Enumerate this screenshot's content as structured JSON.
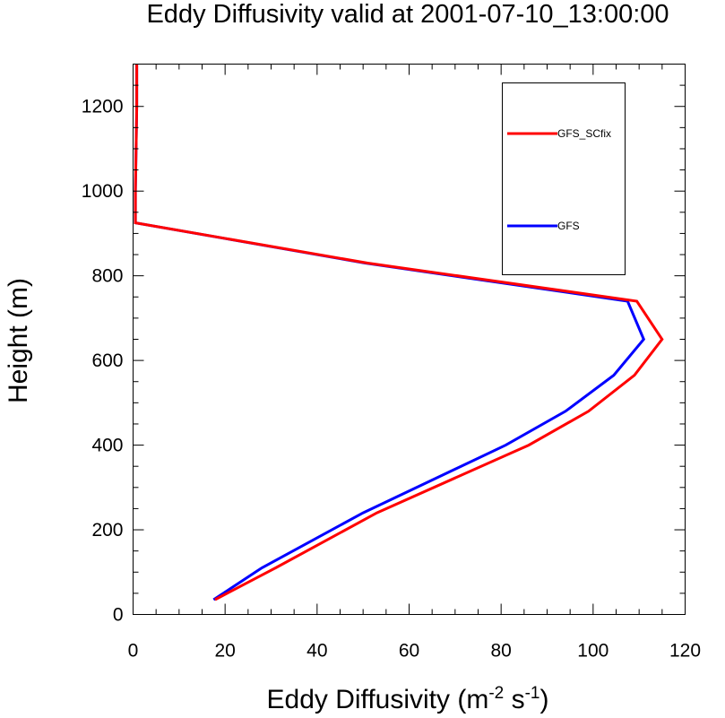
{
  "chart_data": {
    "type": "line",
    "title": "Eddy Diffusivity valid at 2001-07-10_13:00:00",
    "xlabel": "Eddy Diffusivity (m",
    "xlabel_exp1": "-2",
    "xlabel_mid": " s",
    "xlabel_exp2": "-1",
    "xlabel_end": ")",
    "ylabel": "Height (m)",
    "xlim": [
      0,
      120
    ],
    "ylim": [
      0,
      1300
    ],
    "xticks": [
      0,
      20,
      40,
      60,
      80,
      100,
      120
    ],
    "xtick_labels": [
      "0",
      "20",
      "40",
      "60",
      "80",
      "100",
      "120"
    ],
    "yticks": [
      0,
      200,
      400,
      600,
      800,
      1000,
      1200
    ],
    "ytick_labels": [
      "0",
      "200",
      "400",
      "600",
      "800",
      "1000",
      "1200"
    ],
    "grid": false,
    "legend_position": "top-right",
    "series": [
      {
        "name": "GFS_SCfix",
        "color": "#ff0000",
        "x": [
          17.8,
          31.0,
          53.0,
          86.0,
          99.0,
          109.0,
          115.0,
          109.5,
          51.0,
          0.5,
          0.5,
          0.8,
          0.8
        ],
        "y": [
          35,
          110,
          240,
          400,
          480,
          565,
          650,
          740,
          830,
          925,
          1000,
          1200,
          1300
        ]
      },
      {
        "name": "GFS",
        "color": "#0000ff",
        "x": [
          17.5,
          28.0,
          50.0,
          81.0,
          94.0,
          104.5,
          111.0,
          107.5,
          50.5,
          0.5,
          0.5,
          0.8,
          0.8
        ],
        "y": [
          35,
          110,
          240,
          400,
          480,
          565,
          650,
          740,
          830,
          925,
          1000,
          1200,
          1300
        ]
      }
    ]
  }
}
